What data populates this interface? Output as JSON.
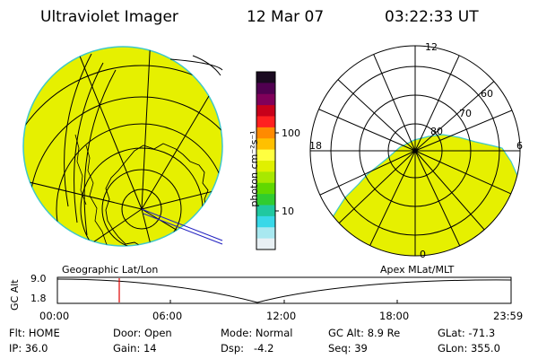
{
  "header": {
    "title": "Ultraviolet Imager",
    "date": "12 Mar 07",
    "time": "03:22:33 UT"
  },
  "colorbar": {
    "unit_label": "photon cm⁻²s⁻¹",
    "ticks": [
      "100",
      "10"
    ],
    "colors": [
      "#1a0a20",
      "#500050",
      "#80005a",
      "#c8001a",
      "#ff2020",
      "#ff8a00",
      "#ffc000",
      "#ffff40",
      "#e0f000",
      "#a8e800",
      "#60d800",
      "#30cc30",
      "#20c8a0",
      "#38d8e8",
      "#a8e8f0",
      "#e8f0f4"
    ]
  },
  "left_panel": {
    "label": "Geographic Lat/Lon",
    "fill_color": "#e6f000"
  },
  "right_panel": {
    "label": "Apex MLat/MLT",
    "mlt_labels": [
      "12",
      "18",
      "6",
      "0"
    ],
    "lat_labels": [
      "60",
      "70",
      "80"
    ],
    "fill_color": "#e6f000"
  },
  "altitude_plot": {
    "axis_label": "GC Alt",
    "y_ticks": [
      "9.0",
      "1.8"
    ],
    "x_ticks": [
      "00:00",
      "06:00",
      "12:00",
      "18:00",
      "23:59"
    ],
    "current_time_marker_color": "#e00000"
  },
  "status": {
    "row1": [
      {
        "label": "Flt:",
        "value": "HOME"
      },
      {
        "label": "Door:",
        "value": "Open"
      },
      {
        "label": "Mode:",
        "value": "Normal"
      },
      {
        "label": "GC Alt:",
        "value": "8.9 Re"
      },
      {
        "label": "GLat:",
        "value": "-71.3"
      }
    ],
    "row2": [
      {
        "label": "IP:",
        "value": "36.0"
      },
      {
        "label": "Gain:",
        "value": "14"
      },
      {
        "label": "Dsp:",
        "value": "-4.2"
      },
      {
        "label": "Seq:",
        "value": "39"
      },
      {
        "label": "GLon:",
        "value": "355.0"
      }
    ]
  }
}
